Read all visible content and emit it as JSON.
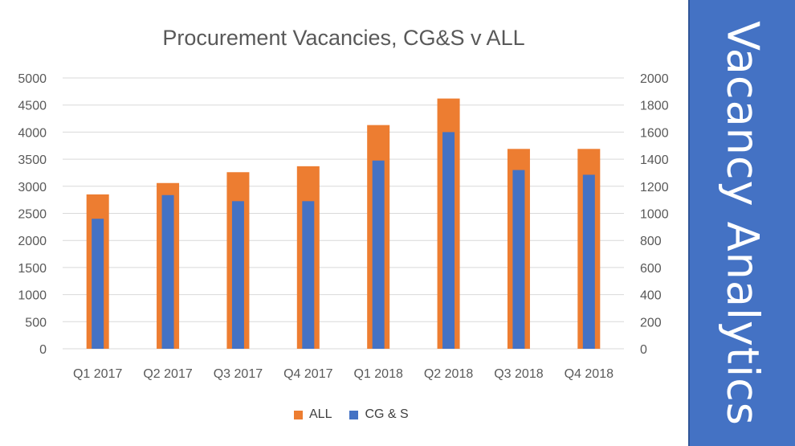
{
  "chart_data": {
    "type": "bar",
    "title": "Procurement Vacancies, CG&S v ALL",
    "categories": [
      "Q1 2017",
      "Q2 2017",
      "Q3 2017",
      "Q4 2017",
      "Q1 2018",
      "Q2 2018",
      "Q3 2018",
      "Q4 2018"
    ],
    "series": [
      {
        "name": "ALL",
        "axis": "left",
        "color": "#ed7d31",
        "values": [
          2850,
          3060,
          3260,
          3370,
          4130,
          4620,
          3690,
          3690
        ]
      },
      {
        "name": "CG & S",
        "axis": "right",
        "color": "#4472c4",
        "values": [
          960,
          1135,
          1090,
          1090,
          1390,
          1600,
          1320,
          1285
        ]
      }
    ],
    "y_left": {
      "min": 0,
      "max": 5000,
      "ticks": [
        "0",
        "500",
        "1000",
        "1500",
        "2000",
        "2500",
        "3000",
        "3500",
        "4000",
        "4500",
        "5000"
      ]
    },
    "y_right": {
      "min": 0,
      "max": 2000,
      "ticks": [
        "0",
        "200",
        "400",
        "600",
        "800",
        "1000",
        "1200",
        "1400",
        "1600",
        "1800",
        "2000"
      ]
    },
    "grid": true,
    "legend_position": "bottom"
  },
  "side_panel": {
    "title": "Vacancy Analytics"
  }
}
